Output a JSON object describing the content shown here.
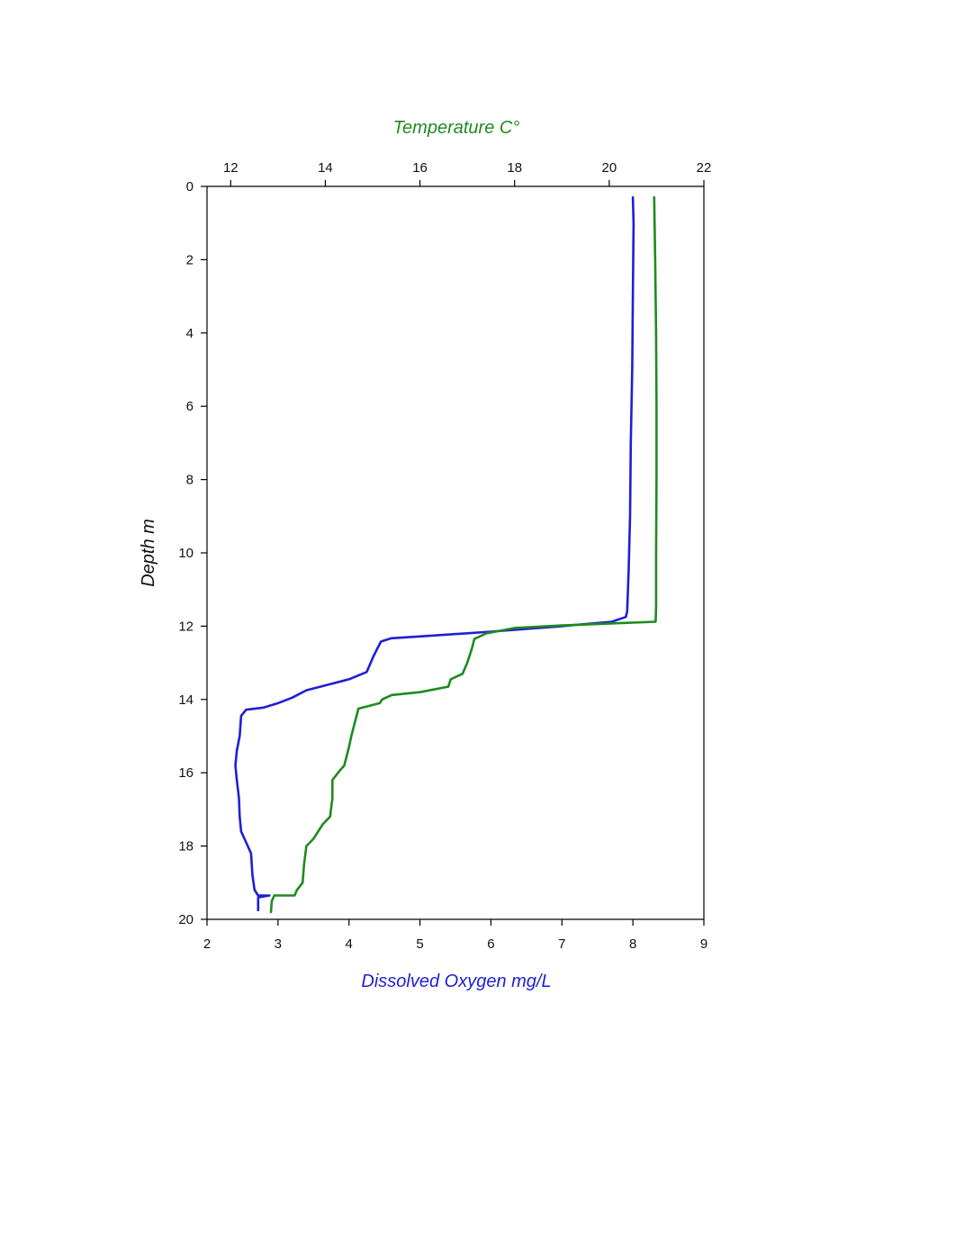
{
  "chart_data": {
    "type": "line",
    "orientation": "depth-profile",
    "y_axis": {
      "label": "Depth m",
      "range": [
        0,
        20
      ],
      "inverted": true,
      "ticks": [
        0,
        2,
        4,
        6,
        8,
        10,
        12,
        14,
        16,
        18,
        20
      ]
    },
    "x_bottom": {
      "label": "Dissolved Oxygen mg/L",
      "color": "#1f1fd6",
      "range": [
        2,
        9
      ],
      "ticks": [
        2,
        3,
        4,
        5,
        6,
        7,
        8,
        9
      ]
    },
    "x_top": {
      "label": "Temperature C°",
      "color": "#1f8a1f",
      "range": [
        11.5,
        22
      ],
      "ticks": [
        12,
        14,
        16,
        18,
        20,
        22
      ]
    },
    "grid": false,
    "series": [
      {
        "key": "oxygen",
        "axis": "bottom",
        "color": "#1f1fd6",
        "points": [
          [
            8.0,
            0.3
          ],
          [
            8.01,
            1.0
          ],
          [
            8.0,
            3.0
          ],
          [
            7.99,
            5.0
          ],
          [
            7.97,
            7.0
          ],
          [
            7.96,
            9.0
          ],
          [
            7.94,
            10.5
          ],
          [
            7.92,
            11.6
          ],
          [
            7.9,
            11.75
          ],
          [
            7.7,
            11.88
          ],
          [
            7.0,
            12.0
          ],
          [
            6.0,
            12.15
          ],
          [
            5.0,
            12.28
          ],
          [
            4.6,
            12.33
          ],
          [
            4.45,
            12.42
          ],
          [
            4.35,
            12.8
          ],
          [
            4.25,
            13.25
          ],
          [
            4.0,
            13.45
          ],
          [
            3.7,
            13.6
          ],
          [
            3.4,
            13.75
          ],
          [
            3.2,
            13.95
          ],
          [
            3.0,
            14.1
          ],
          [
            2.8,
            14.22
          ],
          [
            2.55,
            14.28
          ],
          [
            2.48,
            14.45
          ],
          [
            2.46,
            15.0
          ],
          [
            2.42,
            15.4
          ],
          [
            2.4,
            15.8
          ],
          [
            2.42,
            16.2
          ],
          [
            2.45,
            16.7
          ],
          [
            2.46,
            17.2
          ],
          [
            2.48,
            17.6
          ],
          [
            2.55,
            17.9
          ],
          [
            2.62,
            18.2
          ],
          [
            2.64,
            18.8
          ],
          [
            2.67,
            19.2
          ],
          [
            2.72,
            19.35
          ],
          [
            2.88,
            19.35
          ],
          [
            2.72,
            19.4
          ],
          [
            2.72,
            19.75
          ]
        ]
      },
      {
        "key": "temperature",
        "axis": "top",
        "color": "#1f8a1f",
        "points": [
          [
            20.95,
            0.3
          ],
          [
            20.97,
            2.0
          ],
          [
            20.99,
            4.0
          ],
          [
            21.0,
            6.0
          ],
          [
            21.0,
            8.0
          ],
          [
            20.99,
            10.0
          ],
          [
            20.99,
            11.5
          ],
          [
            20.98,
            11.88
          ],
          [
            20.2,
            11.92
          ],
          [
            19.0,
            11.98
          ],
          [
            18.0,
            12.05
          ],
          [
            17.4,
            12.2
          ],
          [
            17.15,
            12.35
          ],
          [
            17.1,
            12.6
          ],
          [
            17.0,
            13.0
          ],
          [
            16.9,
            13.3
          ],
          [
            16.65,
            13.45
          ],
          [
            16.6,
            13.65
          ],
          [
            16.0,
            13.8
          ],
          [
            15.4,
            13.88
          ],
          [
            15.2,
            14.0
          ],
          [
            15.15,
            14.1
          ],
          [
            14.7,
            14.25
          ],
          [
            14.65,
            14.5
          ],
          [
            14.55,
            15.0
          ],
          [
            14.5,
            15.3
          ],
          [
            14.4,
            15.8
          ],
          [
            14.3,
            15.95
          ],
          [
            14.15,
            16.2
          ],
          [
            14.15,
            16.7
          ],
          [
            14.1,
            17.2
          ],
          [
            13.95,
            17.4
          ],
          [
            13.85,
            17.6
          ],
          [
            13.75,
            17.8
          ],
          [
            13.6,
            18.0
          ],
          [
            13.55,
            18.5
          ],
          [
            13.52,
            19.0
          ],
          [
            13.4,
            19.2
          ],
          [
            13.35,
            19.35
          ],
          [
            12.92,
            19.35
          ],
          [
            12.87,
            19.5
          ],
          [
            12.85,
            19.8
          ]
        ]
      }
    ]
  }
}
